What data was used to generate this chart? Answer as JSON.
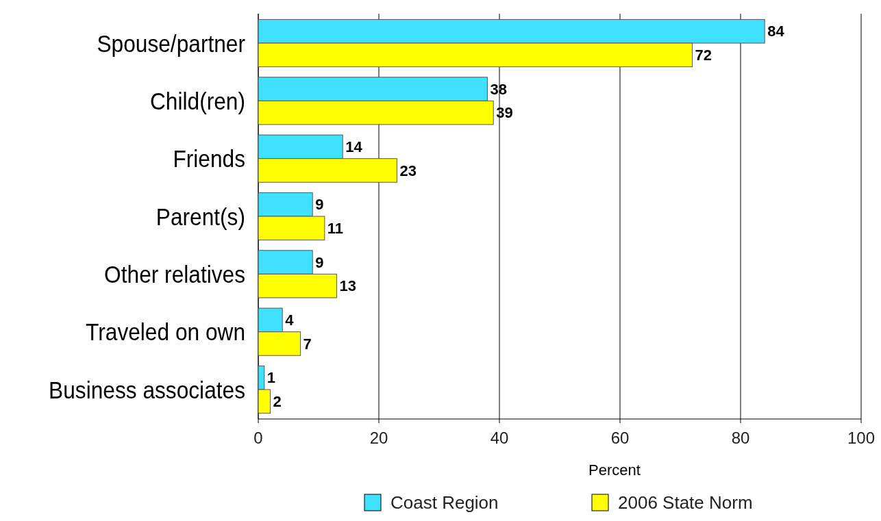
{
  "chart_data": {
    "type": "bar",
    "orientation": "horizontal",
    "categories": [
      "Spouse/partner",
      "Child(ren)",
      "Friends",
      "Parent(s)",
      "Other relatives",
      "Traveled on own",
      "Business associates"
    ],
    "series": [
      {
        "name": "Coast Region",
        "color": "#40e0ff",
        "values": [
          84,
          38,
          14,
          9,
          9,
          4,
          1
        ]
      },
      {
        "name": "2006 State Norm",
        "color": "#ffff00",
        "values": [
          72,
          39,
          23,
          11,
          13,
          7,
          2
        ]
      }
    ],
    "xlabel": "Percent",
    "xlim": [
      0,
      100
    ],
    "xticks": [
      0,
      20,
      40,
      60,
      80,
      100
    ],
    "grid": "x",
    "legend": "bottom",
    "data_labels": true
  }
}
